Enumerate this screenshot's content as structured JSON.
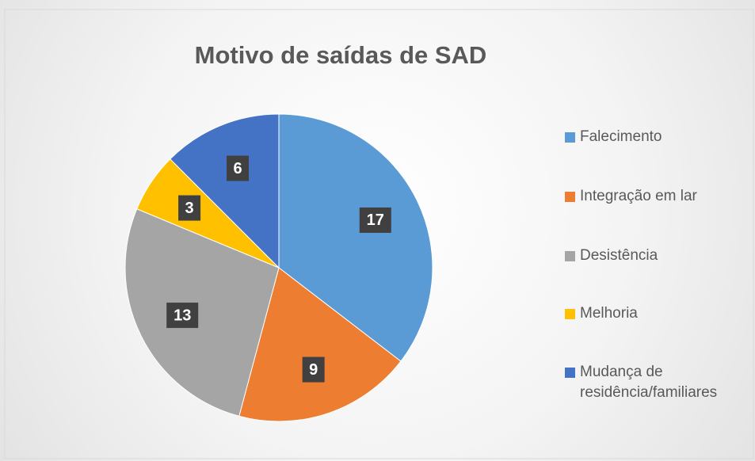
{
  "chart_data": {
    "type": "pie",
    "title": "Motivo de saídas de SAD",
    "categories": [
      "Falecimento",
      "Integração em lar",
      "Desistência",
      "Melhoria",
      "Mudança de residência/familiares"
    ],
    "values": [
      17,
      9,
      13,
      3,
      6
    ],
    "colors": [
      "#5b9bd5",
      "#ed7d31",
      "#a5a5a5",
      "#ffc000",
      "#4472c4"
    ],
    "legend": "right"
  }
}
